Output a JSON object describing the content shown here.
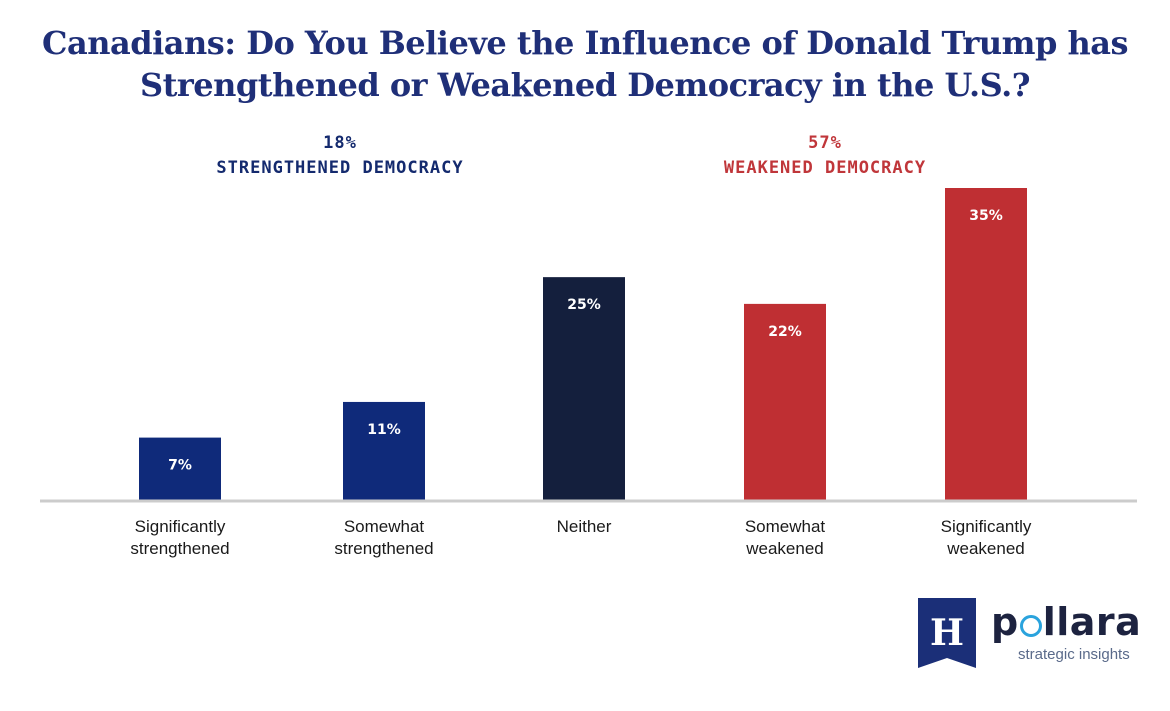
{
  "chart_data": {
    "type": "bar",
    "title_lines": [
      "Canadians: Do You Believe the Influence of Donald Trump has",
      "Strengthened or Weakened Democracy in the U.S.?"
    ],
    "categories": [
      [
        "Significantly",
        "strengthened"
      ],
      [
        "Somewhat",
        "strengthened"
      ],
      [
        "Neither"
      ],
      [
        "Somewhat",
        "weakened"
      ],
      [
        "Significantly",
        "weakened"
      ]
    ],
    "values": [
      7,
      11,
      25,
      22,
      35
    ],
    "value_labels": [
      "7%",
      "11%",
      "25%",
      "22%",
      "35%"
    ],
    "colors": [
      "#0f2a7a",
      "#0f2a7a",
      "#141f3d",
      "#bf2f33",
      "#bf2f33"
    ],
    "ylim": [
      0,
      35
    ],
    "groups": [
      {
        "percent": "18%",
        "label": "STRENGTHENED DEMOCRACY",
        "color": "#142a6e"
      },
      {
        "percent": "57%",
        "label": "WEAKENED DEMOCRACY",
        "color": "#c0363a"
      }
    ],
    "baseline_color": "#cccccc"
  },
  "logo": {
    "mark_letter": "H",
    "name_prefix": "p",
    "name_rest": "llara",
    "tagline": "strategic insights"
  }
}
